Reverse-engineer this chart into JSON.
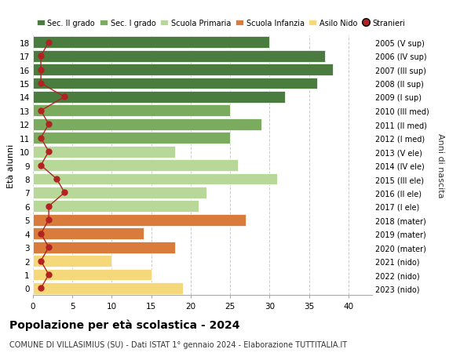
{
  "ages": [
    18,
    17,
    16,
    15,
    14,
    13,
    12,
    11,
    10,
    9,
    8,
    7,
    6,
    5,
    4,
    3,
    2,
    1,
    0
  ],
  "values": [
    30,
    37,
    38,
    36,
    32,
    25,
    29,
    25,
    18,
    26,
    31,
    22,
    21,
    27,
    14,
    18,
    10,
    15,
    19
  ],
  "stranieri": [
    2,
    1,
    1,
    1,
    4,
    1,
    2,
    1,
    2,
    1,
    3,
    4,
    2,
    2,
    1,
    2,
    1,
    2,
    1
  ],
  "right_labels": [
    "2005 (V sup)",
    "2006 (IV sup)",
    "2007 (III sup)",
    "2008 (II sup)",
    "2009 (I sup)",
    "2010 (III med)",
    "2011 (II med)",
    "2012 (I med)",
    "2013 (V ele)",
    "2014 (IV ele)",
    "2015 (III ele)",
    "2016 (II ele)",
    "2017 (I ele)",
    "2018 (mater)",
    "2019 (mater)",
    "2020 (mater)",
    "2021 (nido)",
    "2022 (nido)",
    "2023 (nido)"
  ],
  "bar_colors": [
    "#4a7c3f",
    "#4a7c3f",
    "#4a7c3f",
    "#4a7c3f",
    "#4a7c3f",
    "#7aab5e",
    "#7aab5e",
    "#7aab5e",
    "#b8d89a",
    "#b8d89a",
    "#b8d89a",
    "#b8d89a",
    "#b8d89a",
    "#d97b3a",
    "#d97b3a",
    "#d97b3a",
    "#f5d87a",
    "#f5d87a",
    "#f5d87a"
  ],
  "legend_labels": [
    "Sec. II grado",
    "Sec. I grado",
    "Scuola Primaria",
    "Scuola Infanzia",
    "Asilo Nido",
    "Stranieri"
  ],
  "legend_colors": [
    "#4a7c3f",
    "#7aab5e",
    "#b8d89a",
    "#d97b3a",
    "#f5d87a",
    "#b22222"
  ],
  "title": "Popolazione per età scolastica - 2024",
  "subtitle": "COMUNE DI VILLASIMIUS (SU) - Dati ISTAT 1° gennaio 2024 - Elaborazione TUTTITALIA.IT",
  "ylabel_left": "Età alunni",
  "ylabel_right": "Anni di nascita",
  "xlim": [
    0,
    43
  ],
  "ylim": [
    -0.5,
    18.5
  ],
  "xticks": [
    0,
    5,
    10,
    15,
    20,
    25,
    30,
    35,
    40
  ],
  "stranieri_color": "#b22222",
  "bg_color": "#ffffff",
  "grid_color": "#cccccc"
}
